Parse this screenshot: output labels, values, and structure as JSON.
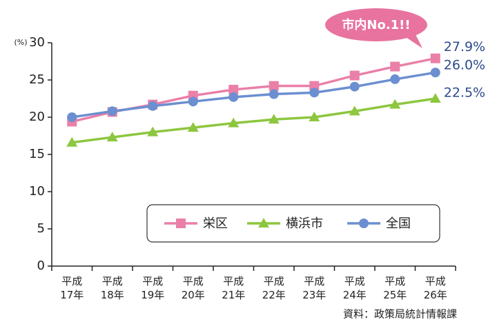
{
  "chart_data": {
    "type": "line",
    "y_label": "(%)",
    "annotation": "市内No.1!!",
    "source": "資料：政策局統計情報課",
    "categories": [
      "平成\n17年",
      "平成\n18年",
      "平成\n19年",
      "平成\n20年",
      "平成\n21年",
      "平成\n22年",
      "平成\n23年",
      "平成\n24年",
      "平成\n25年",
      "平成\n26年"
    ],
    "series": [
      {
        "name": "栄区",
        "color": "#ea7fa8",
        "marker": "square",
        "values": [
          19.4,
          20.7,
          21.7,
          22.9,
          23.7,
          24.2,
          24.2,
          25.6,
          26.8,
          27.9
        ],
        "value_labels": [
          null,
          null,
          null,
          null,
          null,
          null,
          null,
          null,
          null,
          "27.9%"
        ]
      },
      {
        "name": "横浜市",
        "color": "#8dc63f",
        "marker": "triangle",
        "values": [
          16.6,
          17.3,
          18.0,
          18.6,
          19.2,
          19.7,
          20.0,
          20.8,
          21.7,
          22.5
        ],
        "value_labels": [
          null,
          null,
          null,
          null,
          null,
          null,
          null,
          null,
          null,
          "22.5%"
        ]
      },
      {
        "name": "全国",
        "color": "#6b8fd0",
        "marker": "circle",
        "values": [
          20.0,
          20.8,
          21.5,
          22.1,
          22.7,
          23.1,
          23.3,
          24.1,
          25.1,
          26.0
        ],
        "value_labels": [
          null,
          null,
          null,
          null,
          null,
          null,
          null,
          null,
          null,
          "26.0%"
        ]
      }
    ],
    "ylim": [
      0,
      30
    ],
    "yticks": [
      0,
      5,
      10,
      15,
      20,
      25,
      30
    ],
    "grid": false,
    "legend": "lower right"
  }
}
